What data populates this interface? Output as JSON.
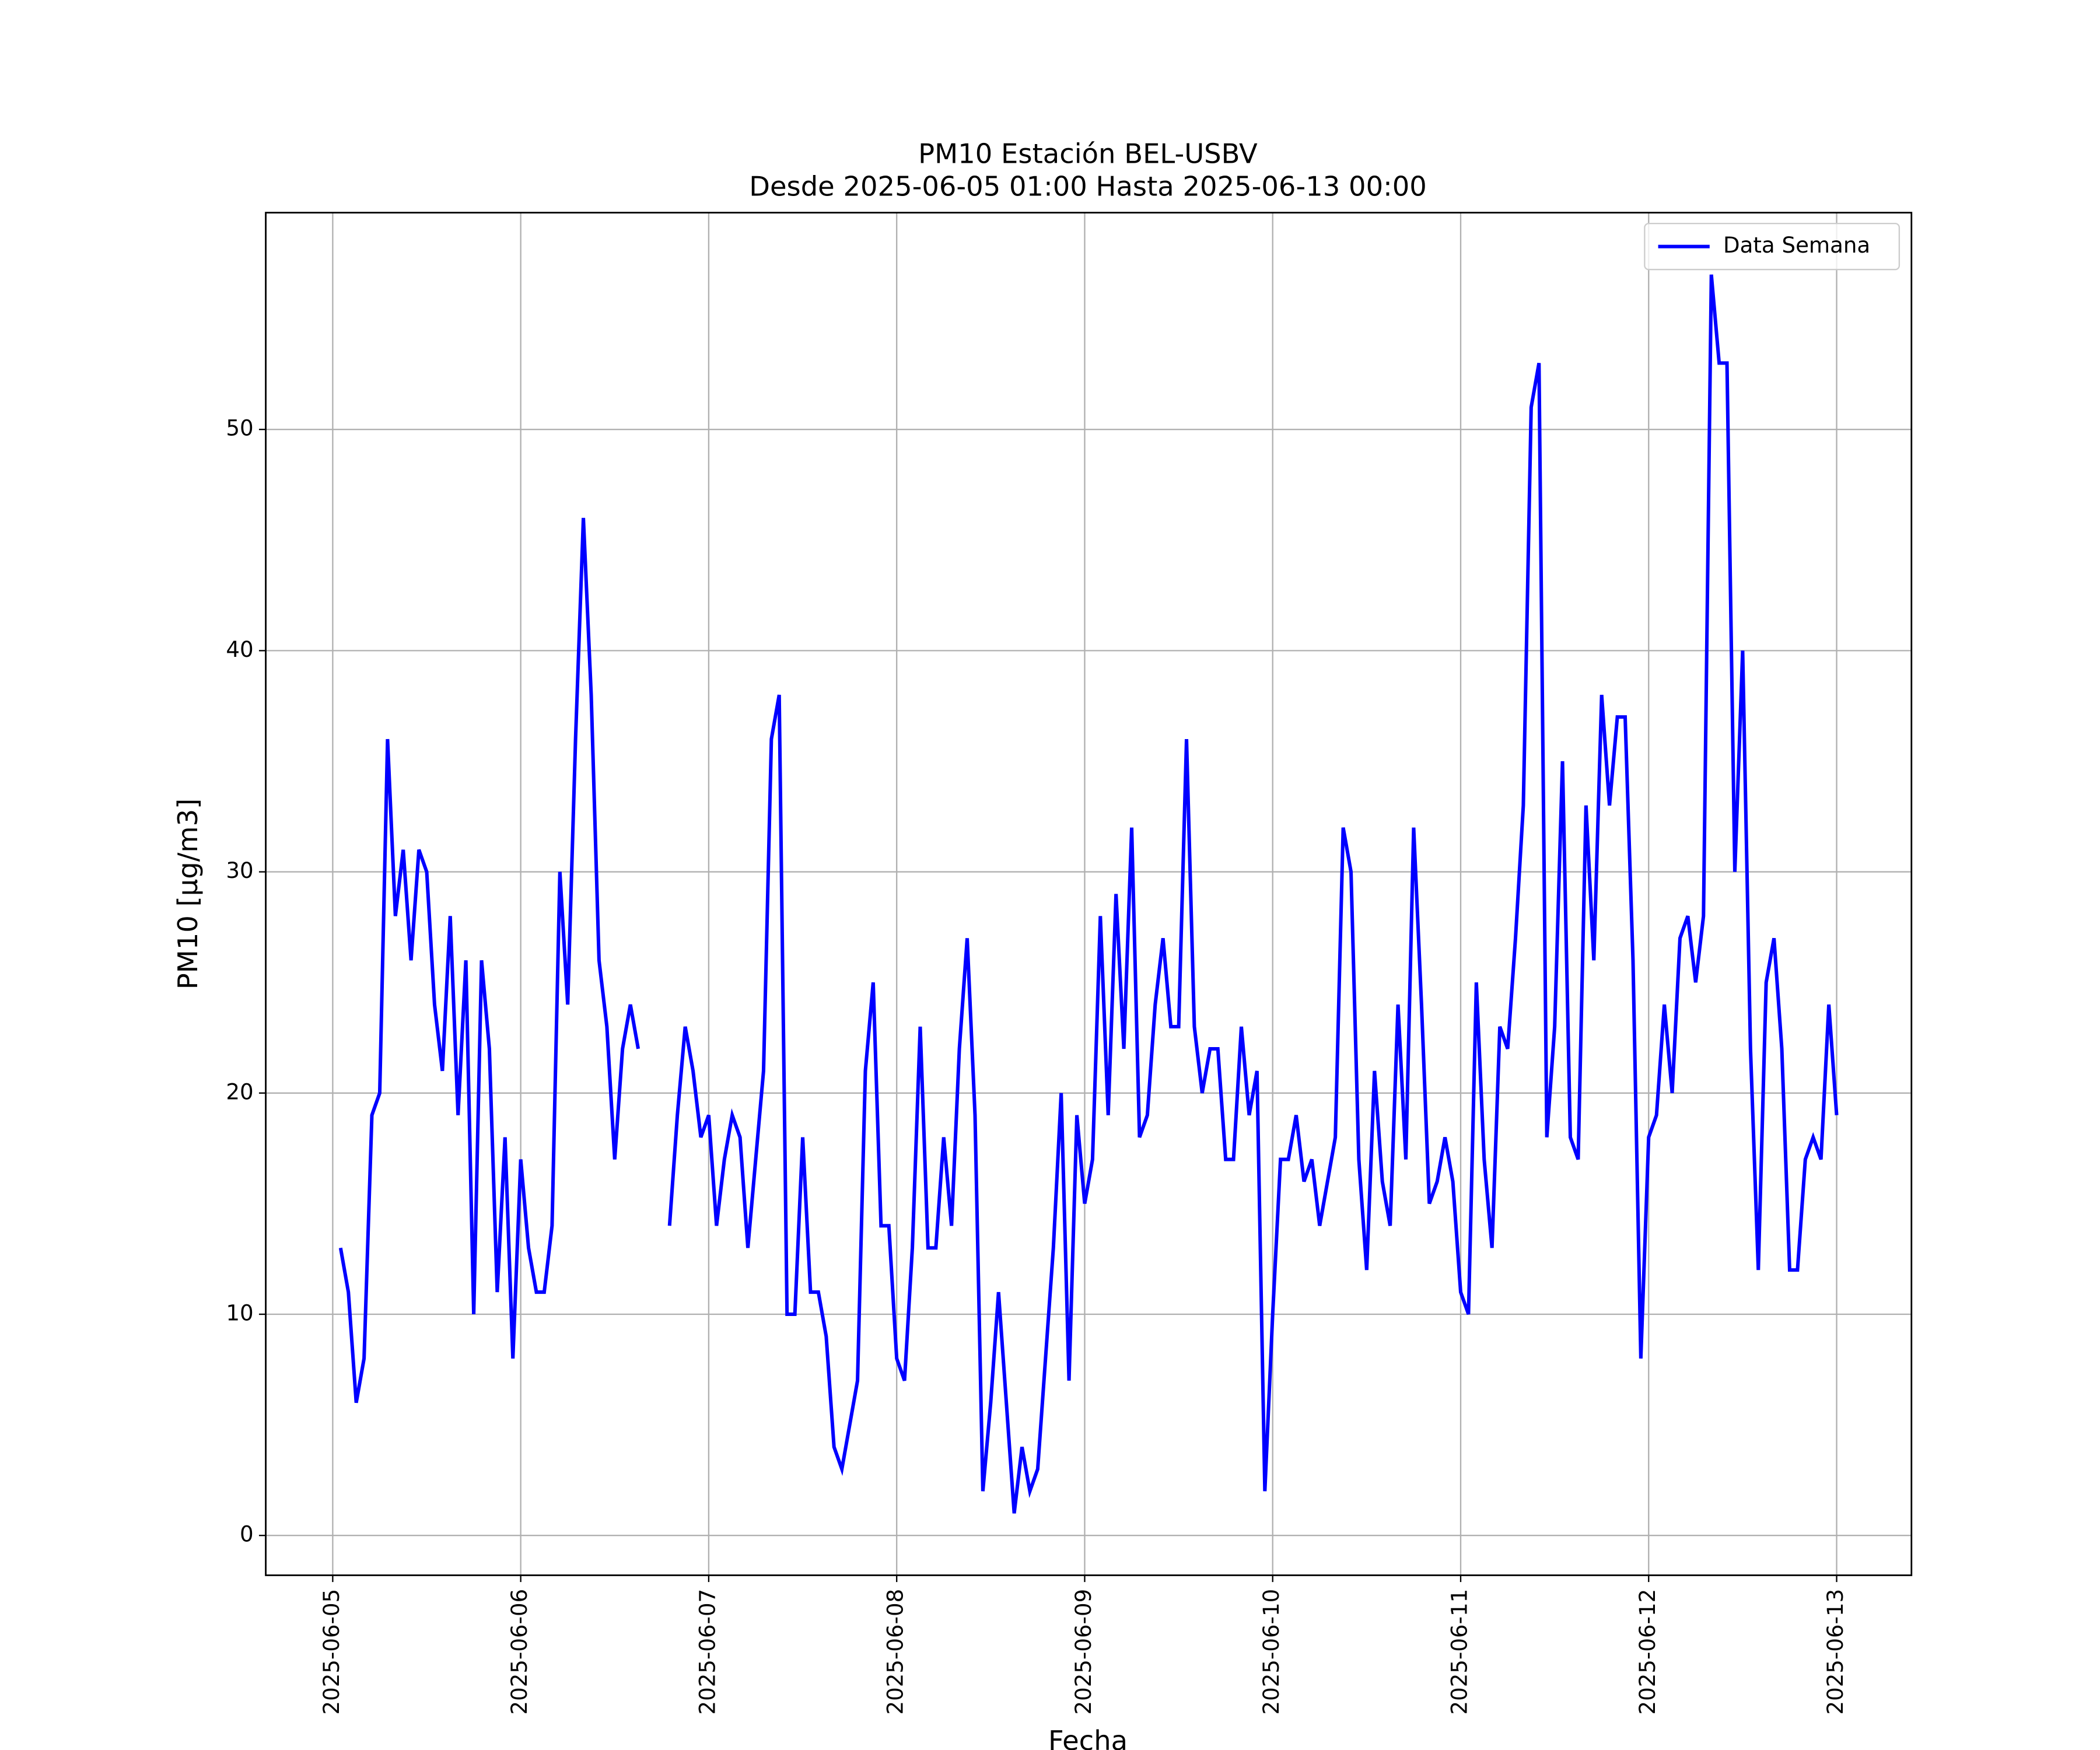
{
  "chart_data": {
    "type": "line",
    "title": "PM10 Estación BEL-USBV",
    "subtitle": "Desde 2025-06-05 01:00 Hasta 2025-06-13 00:00",
    "xlabel": "Fecha",
    "ylabel": "PM10 [μg/m3]",
    "x": [
      "2025-06-05 01:00",
      "2025-06-05 02:00",
      "2025-06-05 03:00",
      "2025-06-05 04:00",
      "2025-06-05 05:00",
      "2025-06-05 06:00",
      "2025-06-05 07:00",
      "2025-06-05 08:00",
      "2025-06-05 09:00",
      "2025-06-05 10:00",
      "2025-06-05 11:00",
      "2025-06-05 12:00",
      "2025-06-05 13:00",
      "2025-06-05 14:00",
      "2025-06-05 15:00",
      "2025-06-05 16:00",
      "2025-06-05 17:00",
      "2025-06-05 18:00",
      "2025-06-05 19:00",
      "2025-06-05 20:00",
      "2025-06-05 21:00",
      "2025-06-05 22:00",
      "2025-06-05 23:00",
      "2025-06-06 00:00",
      "2025-06-06 01:00",
      "2025-06-06 02:00",
      "2025-06-06 03:00",
      "2025-06-06 04:00",
      "2025-06-06 05:00",
      "2025-06-06 06:00",
      "2025-06-06 07:00",
      "2025-06-06 08:00",
      "2025-06-06 09:00",
      "2025-06-06 10:00",
      "2025-06-06 11:00",
      "2025-06-06 12:00",
      "2025-06-06 13:00",
      "2025-06-06 14:00",
      "2025-06-06 15:00",
      "2025-06-06 16:00",
      "2025-06-06 17:00",
      "2025-06-06 18:00",
      "2025-06-06 19:00",
      "2025-06-06 20:00",
      "2025-06-06 21:00",
      "2025-06-06 22:00",
      "2025-06-06 23:00",
      "2025-06-07 00:00",
      "2025-06-07 01:00",
      "2025-06-07 02:00",
      "2025-06-07 03:00",
      "2025-06-07 04:00",
      "2025-06-07 05:00",
      "2025-06-07 06:00",
      "2025-06-07 07:00",
      "2025-06-07 08:00",
      "2025-06-07 09:00",
      "2025-06-07 10:00",
      "2025-06-07 11:00",
      "2025-06-07 12:00",
      "2025-06-07 13:00",
      "2025-06-07 14:00",
      "2025-06-07 15:00",
      "2025-06-07 16:00",
      "2025-06-07 17:00",
      "2025-06-07 18:00",
      "2025-06-07 19:00",
      "2025-06-07 20:00",
      "2025-06-07 21:00",
      "2025-06-07 22:00",
      "2025-06-07 23:00",
      "2025-06-08 00:00",
      "2025-06-08 01:00",
      "2025-06-08 02:00",
      "2025-06-08 03:00",
      "2025-06-08 04:00",
      "2025-06-08 05:00",
      "2025-06-08 06:00",
      "2025-06-08 07:00",
      "2025-06-08 08:00",
      "2025-06-08 09:00",
      "2025-06-08 10:00",
      "2025-06-08 11:00",
      "2025-06-08 12:00",
      "2025-06-08 13:00",
      "2025-06-08 14:00",
      "2025-06-08 15:00",
      "2025-06-08 16:00",
      "2025-06-08 17:00",
      "2025-06-08 18:00",
      "2025-06-08 19:00",
      "2025-06-08 20:00",
      "2025-06-08 21:00",
      "2025-06-08 22:00",
      "2025-06-08 23:00",
      "2025-06-09 00:00",
      "2025-06-09 01:00",
      "2025-06-09 02:00",
      "2025-06-09 03:00",
      "2025-06-09 04:00",
      "2025-06-09 05:00",
      "2025-06-09 06:00",
      "2025-06-09 07:00",
      "2025-06-09 08:00",
      "2025-06-09 09:00",
      "2025-06-09 10:00",
      "2025-06-09 11:00",
      "2025-06-09 12:00",
      "2025-06-09 13:00",
      "2025-06-09 14:00",
      "2025-06-09 15:00",
      "2025-06-09 16:00",
      "2025-06-09 17:00",
      "2025-06-09 18:00",
      "2025-06-09 19:00",
      "2025-06-09 20:00",
      "2025-06-09 21:00",
      "2025-06-09 22:00",
      "2025-06-09 23:00",
      "2025-06-10 00:00",
      "2025-06-10 01:00",
      "2025-06-10 02:00",
      "2025-06-10 03:00",
      "2025-06-10 04:00",
      "2025-06-10 05:00",
      "2025-06-10 06:00",
      "2025-06-10 07:00",
      "2025-06-10 08:00",
      "2025-06-10 09:00",
      "2025-06-10 10:00",
      "2025-06-10 11:00",
      "2025-06-10 12:00",
      "2025-06-10 13:00",
      "2025-06-10 14:00",
      "2025-06-10 15:00",
      "2025-06-10 16:00",
      "2025-06-10 17:00",
      "2025-06-10 18:00",
      "2025-06-10 19:00",
      "2025-06-10 20:00",
      "2025-06-10 21:00",
      "2025-06-10 22:00",
      "2025-06-10 23:00",
      "2025-06-11 00:00",
      "2025-06-11 01:00",
      "2025-06-11 02:00",
      "2025-06-11 03:00",
      "2025-06-11 04:00",
      "2025-06-11 05:00",
      "2025-06-11 06:00",
      "2025-06-11 07:00",
      "2025-06-11 08:00",
      "2025-06-11 09:00",
      "2025-06-11 10:00",
      "2025-06-11 11:00",
      "2025-06-11 12:00",
      "2025-06-11 13:00",
      "2025-06-11 14:00",
      "2025-06-11 15:00",
      "2025-06-11 16:00",
      "2025-06-11 17:00",
      "2025-06-11 18:00",
      "2025-06-11 19:00",
      "2025-06-11 20:00",
      "2025-06-11 21:00",
      "2025-06-11 22:00",
      "2025-06-11 23:00",
      "2025-06-12 00:00",
      "2025-06-12 01:00",
      "2025-06-12 02:00",
      "2025-06-12 03:00",
      "2025-06-12 04:00",
      "2025-06-12 05:00",
      "2025-06-12 06:00",
      "2025-06-12 07:00",
      "2025-06-12 08:00",
      "2025-06-12 09:00",
      "2025-06-12 10:00",
      "2025-06-12 11:00",
      "2025-06-12 12:00",
      "2025-06-12 13:00",
      "2025-06-12 14:00",
      "2025-06-12 15:00",
      "2025-06-12 16:00",
      "2025-06-12 17:00",
      "2025-06-12 18:00",
      "2025-06-12 19:00",
      "2025-06-12 20:00",
      "2025-06-12 21:00",
      "2025-06-12 22:00",
      "2025-06-12 23:00",
      "2025-06-13 00:00"
    ],
    "series": [
      {
        "name": "Data Semana",
        "color": "#0000ff",
        "values": [
          13,
          11,
          6,
          8,
          19,
          20,
          36,
          28,
          31,
          26,
          31,
          30,
          24,
          21,
          28,
          19,
          26,
          10,
          26,
          22,
          11,
          18,
          8,
          17,
          13,
          11,
          11,
          14,
          30,
          24,
          36,
          46,
          38,
          26,
          23,
          17,
          22,
          24,
          22,
          null,
          null,
          null,
          14,
          19,
          23,
          21,
          18,
          19,
          14,
          17,
          19,
          18,
          13,
          17,
          21,
          36,
          38,
          10,
          10,
          18,
          11,
          11,
          9,
          4,
          3,
          5,
          7,
          21,
          25,
          14,
          14,
          8,
          7,
          13,
          23,
          13,
          13,
          18,
          14,
          22,
          27,
          19,
          2,
          6,
          11,
          6,
          1,
          4,
          2,
          3,
          8,
          13,
          20,
          7,
          19,
          15,
          17,
          28,
          19,
          29,
          22,
          32,
          18,
          19,
          24,
          27,
          23,
          23,
          36,
          23,
          20,
          22,
          22,
          17,
          17,
          23,
          19,
          21,
          2,
          10,
          17,
          17,
          19,
          16,
          17,
          14,
          16,
          18,
          32,
          30,
          17,
          12,
          21,
          16,
          14,
          24,
          17,
          32,
          24,
          15,
          16,
          18,
          16,
          11,
          10,
          25,
          17,
          13,
          23,
          22,
          27,
          33,
          51,
          53,
          18,
          23,
          35,
          18,
          17,
          33,
          26,
          38,
          33,
          37,
          37,
          26,
          8,
          18,
          19,
          24,
          20,
          27,
          28,
          25,
          28,
          57,
          53,
          53,
          30,
          40,
          22,
          12,
          25,
          27,
          22,
          12,
          12,
          17,
          18,
          17,
          24,
          19
        ]
      }
    ],
    "xlim": [
      "2025-06-04 15:27",
      "2025-06-13 09:33"
    ],
    "xticks": [
      "2025-06-05",
      "2025-06-06",
      "2025-06-07",
      "2025-06-08",
      "2025-06-09",
      "2025-06-10",
      "2025-06-11",
      "2025-06-12",
      "2025-06-13"
    ],
    "ylim": [
      -1.8,
      59.8
    ],
    "yticks": [
      0,
      10,
      20,
      30,
      40,
      50
    ],
    "grid": true,
    "legend": "upper right"
  }
}
